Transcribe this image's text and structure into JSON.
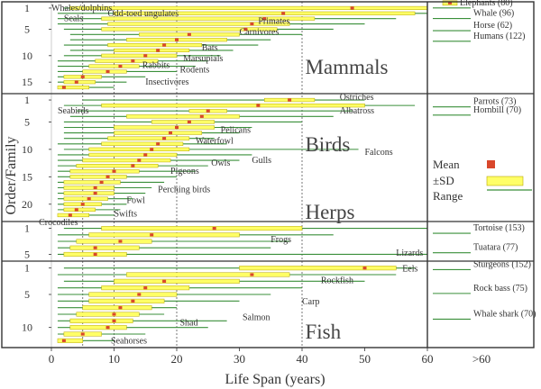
{
  "chart_data": {
    "type": "range",
    "xlabel": "Life Span (years)",
    "ylabel": "Order/Family",
    "xlim": [
      0,
      60
    ],
    "x_ticks": [
      0,
      10,
      20,
      30,
      40,
      50,
      60
    ],
    "x_extra_label": ">60",
    "reference_lines_x": [
      5,
      10,
      20,
      40
    ],
    "legend": {
      "mean": "Mean",
      "sd": "±SD",
      "range": "Range"
    },
    "colors": {
      "mean": "#d9472b",
      "sd_fill": "#ffff66",
      "sd_stroke": "#b8a800",
      "range": "#3a8f3a",
      "frame": "#333333",
      "text": "#333333"
    },
    "panels": [
      {
        "name": "Mammals",
        "count": 16,
        "y_ticks": [
          1,
          5,
          10,
          15
        ],
        "labels": [
          {
            "text": "Whales/dolphins",
            "row": 1,
            "x": 0
          },
          {
            "text": "Odd-toed ungulates",
            "row": 2,
            "x": 9
          },
          {
            "text": "Seals",
            "row": 3,
            "x": 2
          },
          {
            "text": "Primates",
            "row": 3.5,
            "x": 33
          },
          {
            "text": "Carnivores",
            "row": 5.5,
            "x": 30
          },
          {
            "text": "Bats",
            "row": 8.5,
            "x": 24
          },
          {
            "text": "Marsupials",
            "row": 10.5,
            "x": 21
          },
          {
            "text": "Rabbits",
            "row": 11.8,
            "x": 14.5
          },
          {
            "text": "Rodents",
            "row": 12.7,
            "x": 20.5
          },
          {
            "text": "Insectivores",
            "row": 15,
            "x": 15
          }
        ],
        "items": [
          {
            "min": 2,
            "sd_lo": 3,
            "sd_hi": 60,
            "mean": 48,
            "max": 60
          },
          {
            "min": 1,
            "sd_lo": 10,
            "sd_hi": 58,
            "mean": 37,
            "max": 60
          },
          {
            "min": 1,
            "sd_lo": 8,
            "sd_hi": 42,
            "mean": 34,
            "max": 55
          },
          {
            "min": 1,
            "sd_lo": 9,
            "sd_hi": 38,
            "mean": 32,
            "max": 50
          },
          {
            "min": 2,
            "sd_lo": 8,
            "sd_hi": 36,
            "mean": 31,
            "max": 45
          },
          {
            "min": 3,
            "sd_lo": 14,
            "sd_hi": 30,
            "mean": 22,
            "max": 40
          },
          {
            "min": 3,
            "sd_lo": 12,
            "sd_hi": 28,
            "mean": 20,
            "max": 35
          },
          {
            "min": 2,
            "sd_lo": 9,
            "sd_hi": 24,
            "mean": 18,
            "max": 33
          },
          {
            "min": 3,
            "sd_lo": 10,
            "sd_hi": 22,
            "mean": 17,
            "max": 29
          },
          {
            "min": 2,
            "sd_lo": 8,
            "sd_hi": 20,
            "mean": 15,
            "max": 27
          },
          {
            "min": 1,
            "sd_lo": 7,
            "sd_hi": 17,
            "mean": 13,
            "max": 25
          },
          {
            "min": 1,
            "sd_lo": 6,
            "sd_hi": 14,
            "mean": 11,
            "max": 23
          },
          {
            "min": 1,
            "sd_lo": 5,
            "sd_hi": 12,
            "mean": 9,
            "max": 20
          },
          {
            "min": 1,
            "sd_lo": 2,
            "sd_hi": 8,
            "mean": 5,
            "max": 15
          },
          {
            "min": 1,
            "sd_lo": 2,
            "sd_hi": 7,
            "mean": 4,
            "max": 12
          },
          {
            "min": 1,
            "sd_lo": 1,
            "sd_hi": 6,
            "mean": 2,
            "max": 10
          }
        ]
      },
      {
        "name": "Birds",
        "count": 22,
        "y_ticks": [
          1,
          5,
          10,
          15,
          20
        ],
        "labels": [
          {
            "text": "Ostriches",
            "row": 0.5,
            "x": 46
          },
          {
            "text": "Seabirds",
            "row": 3,
            "x": 1
          },
          {
            "text": "Albatross",
            "row": 3,
            "x": 46
          },
          {
            "text": "Pelicans",
            "row": 6.5,
            "x": 27
          },
          {
            "text": "Waterfowl",
            "row": 8.5,
            "x": 23
          },
          {
            "text": "Falcons",
            "row": 10.5,
            "x": 50
          },
          {
            "text": "Gulls",
            "row": 12,
            "x": 32
          },
          {
            "text": "Owls",
            "row": 12.5,
            "x": 25.5
          },
          {
            "text": "Pigeons",
            "row": 14,
            "x": 19
          },
          {
            "text": "Perching birds",
            "row": 17.3,
            "x": 17
          },
          {
            "text": "Fowl",
            "row": 19.3,
            "x": 12
          },
          {
            "text": "Swifts",
            "row": 21.8,
            "x": 10
          }
        ],
        "items": [
          {
            "min": 5,
            "sd_lo": 34,
            "sd_hi": 42,
            "mean": 38,
            "max": 50
          },
          {
            "min": 2,
            "sd_lo": 8,
            "sd_hi": 50,
            "mean": 33,
            "max": 58
          },
          {
            "min": 4,
            "sd_lo": 22,
            "sd_hi": 28,
            "mean": 25,
            "max": 48
          },
          {
            "min": 3,
            "sd_lo": 12,
            "sd_hi": 30,
            "mean": 24,
            "max": 45
          },
          {
            "min": 2,
            "sd_lo": 16,
            "sd_hi": 26,
            "mean": 22,
            "max": 40
          },
          {
            "min": 2,
            "sd_lo": 10,
            "sd_hi": 26,
            "mean": 20,
            "max": 32
          },
          {
            "min": 2,
            "sd_lo": 10,
            "sd_hi": 24,
            "mean": 19,
            "max": 30
          },
          {
            "min": 2,
            "sd_lo": 9,
            "sd_hi": 22,
            "mean": 18,
            "max": 26
          },
          {
            "min": 1,
            "sd_lo": 8,
            "sd_hi": 21,
            "mean": 17,
            "max": 28
          },
          {
            "min": 2,
            "sd_lo": 6,
            "sd_hi": 22,
            "mean": 16,
            "max": 49
          },
          {
            "min": 1,
            "sd_lo": 6,
            "sd_hi": 20,
            "mean": 15,
            "max": 32
          },
          {
            "min": 1,
            "sd_lo": 5,
            "sd_hi": 19,
            "mean": 14,
            "max": 30
          },
          {
            "min": 1,
            "sd_lo": 4,
            "sd_hi": 17,
            "mean": 13,
            "max": 25
          },
          {
            "min": 1,
            "sd_lo": 3,
            "sd_hi": 14,
            "mean": 10,
            "max": 23
          },
          {
            "min": 1,
            "sd_lo": 3,
            "sd_hi": 12,
            "mean": 9,
            "max": 20
          },
          {
            "min": 1,
            "sd_lo": 2,
            "sd_hi": 11,
            "mean": 8,
            "max": 18
          },
          {
            "min": 1,
            "sd_lo": 2,
            "sd_hi": 10,
            "mean": 7,
            "max": 16
          },
          {
            "min": 1,
            "sd_lo": 2,
            "sd_hi": 10,
            "mean": 7,
            "max": 15
          },
          {
            "min": 1,
            "sd_lo": 2,
            "sd_hi": 9,
            "mean": 6,
            "max": 13
          },
          {
            "min": 1,
            "sd_lo": 2,
            "sd_hi": 8,
            "mean": 5,
            "max": 12
          },
          {
            "min": 1,
            "sd_lo": 2,
            "sd_hi": 7,
            "mean": 4,
            "max": 11
          },
          {
            "min": 1,
            "sd_lo": 1,
            "sd_hi": 6,
            "mean": 3,
            "max": 10
          }
        ]
      },
      {
        "name": "Herps",
        "name_row": -1.3,
        "count": 5,
        "y_ticks": [
          1,
          5
        ],
        "labels": [
          {
            "text": "Crocodiles",
            "row": 0.1,
            "x": -2
          },
          {
            "text": "Frogs",
            "row": 2.7,
            "x": 35
          },
          {
            "text": "Lizards",
            "row": 4.8,
            "x": 55
          }
        ],
        "items": [
          {
            "min": 2,
            "sd_lo": 8,
            "sd_hi": 40,
            "mean": 26,
            "max": 60
          },
          {
            "min": 1,
            "sd_lo": 6,
            "sd_hi": 30,
            "mean": 16,
            "max": 45
          },
          {
            "min": 1,
            "sd_lo": 4,
            "sd_hi": 16,
            "mean": 11,
            "max": 38
          },
          {
            "min": 1,
            "sd_lo": 3,
            "sd_hi": 14,
            "mean": 7,
            "max": 35
          },
          {
            "min": 1,
            "sd_lo": 2,
            "sd_hi": 12,
            "mean": 7,
            "max": 60
          }
        ]
      },
      {
        "name": "Fish",
        "count": 12,
        "y_ticks": [
          1,
          5,
          10
        ],
        "labels": [
          {
            "text": "Eels",
            "row": 1.1,
            "x": 56
          },
          {
            "text": "Rockfish",
            "row": 2.9,
            "x": 43
          },
          {
            "text": "Carp",
            "row": 6.1,
            "x": 40
          },
          {
            "text": "Salmon",
            "row": 8.5,
            "x": 30.5
          },
          {
            "text": "Shad",
            "row": 9.3,
            "x": 20.5
          },
          {
            "text": "Seahorses",
            "row": 12,
            "x": 9.5
          }
        ],
        "items": [
          {
            "min": 2,
            "sd_lo": 30,
            "sd_hi": 55,
            "mean": 50,
            "max": 58
          },
          {
            "min": 1,
            "sd_lo": 12,
            "sd_hi": 38,
            "mean": 32,
            "max": 55
          },
          {
            "min": 2,
            "sd_lo": 10,
            "sd_hi": 30,
            "mean": 18,
            "max": 50
          },
          {
            "min": 1,
            "sd_lo": 8,
            "sd_hi": 22,
            "mean": 15,
            "max": 40
          },
          {
            "min": 1,
            "sd_lo": 6,
            "sd_hi": 20,
            "mean": 14,
            "max": 35
          },
          {
            "min": 1,
            "sd_lo": 6,
            "sd_hi": 18,
            "mean": 13,
            "max": 30
          },
          {
            "min": 1,
            "sd_lo": 5,
            "sd_hi": 16,
            "mean": 11,
            "max": 20
          },
          {
            "min": 1,
            "sd_lo": 4,
            "sd_hi": 14,
            "mean": 10,
            "max": 18
          },
          {
            "min": 1,
            "sd_lo": 3,
            "sd_hi": 13,
            "mean": 10,
            "max": 28
          },
          {
            "min": 1,
            "sd_lo": 3,
            "sd_hi": 12,
            "mean": 9,
            "max": 25
          },
          {
            "min": 1,
            "sd_lo": 2,
            "sd_hi": 8,
            "mean": 5,
            "max": 15
          },
          {
            "min": 1,
            "sd_lo": 1,
            "sd_hi": 5,
            "mean": 2,
            "max": 10
          }
        ]
      }
    ],
    "outliers": [
      {
        "label": "Elephants (80)",
        "panel": "Mammals",
        "row": 0.3,
        "legend_marker": true
      },
      {
        "label": "Whale (96)",
        "panel": "Mammals",
        "row": 2.3
      },
      {
        "label": "Horse (62)",
        "panel": "Mammals",
        "row": 4.6
      },
      {
        "label": "Humans (122)",
        "panel": "Mammals",
        "row": 6.6
      },
      {
        "label": "Parrots (73)",
        "panel": "Birds",
        "row": 1.6
      },
      {
        "label": "Hornbill (70)",
        "panel": "Birds",
        "row": 3.1
      },
      {
        "label": "Tortoise (153)",
        "panel": "Herps",
        "row": 1.2
      },
      {
        "label": "Tuatara (77)",
        "panel": "Herps",
        "row": 4.2
      },
      {
        "label": "Sturgeons (152)",
        "panel": "Fish",
        "row": 0.7
      },
      {
        "label": "Rock bass (75)",
        "panel": "Fish",
        "row": 4.3
      },
      {
        "label": "Whale shark (70)",
        "panel": "Fish",
        "row": 8.2
      }
    ]
  }
}
